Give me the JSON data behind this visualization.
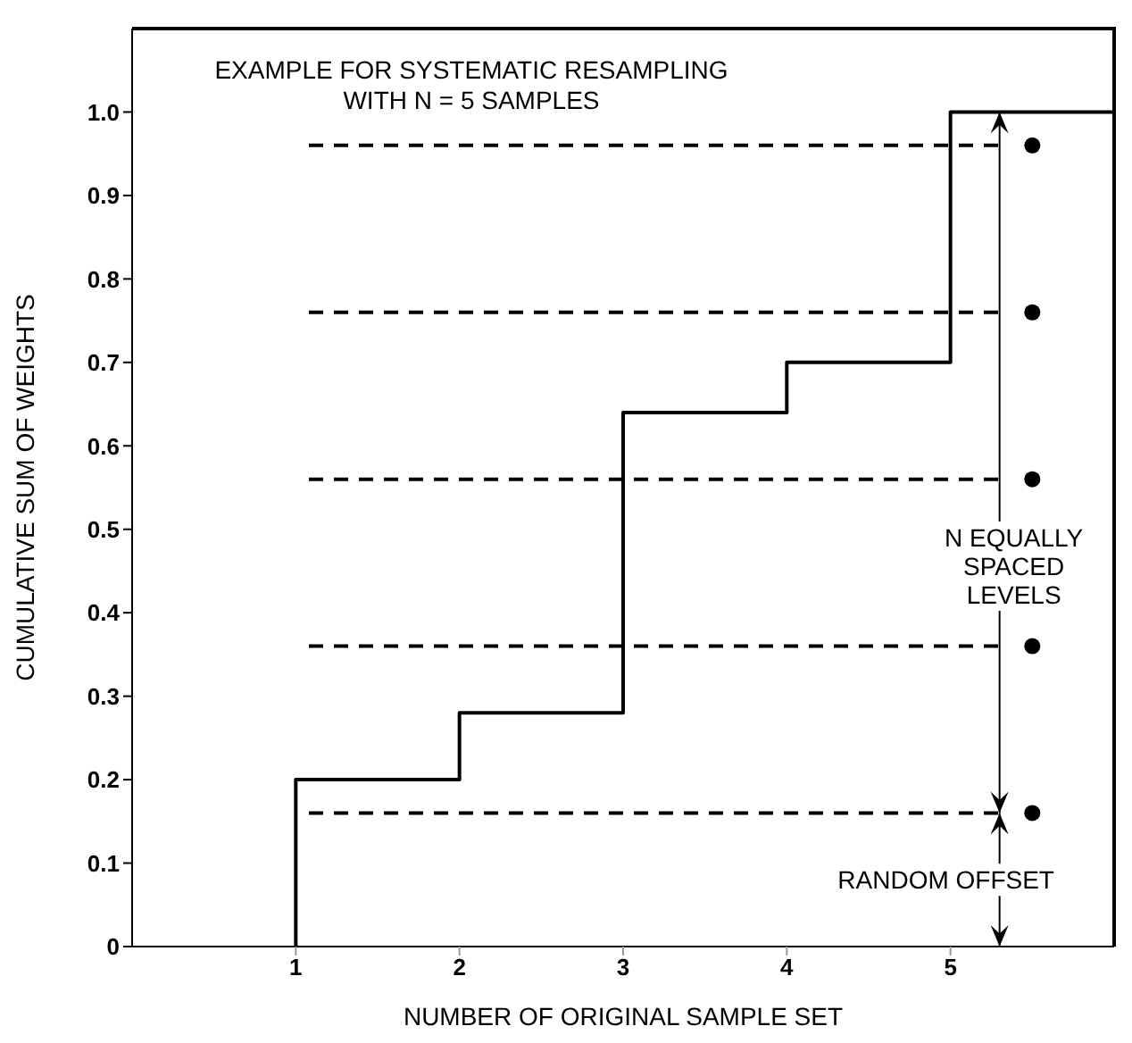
{
  "chart_data": {
    "type": "line",
    "title": "EXAMPLE FOR SYSTEMATIC RESAMPLING\nWITH N = 5 SAMPLES",
    "xlabel": "NUMBER OF ORIGINAL SAMPLE SET",
    "ylabel": "CUMULATIVE SUM OF WEIGHTS",
    "xlim": [
      0,
      6
    ],
    "xticks": [
      1,
      2,
      3,
      4,
      5
    ],
    "ylim": [
      0,
      1.1
    ],
    "yticks": [
      0,
      0.1,
      0.2,
      0.3,
      0.4,
      0.5,
      0.6,
      0.7,
      0.8,
      0.9,
      {
        "value": 1,
        "label": "1.0"
      }
    ],
    "grid": false,
    "legend": false,
    "series": [
      {
        "type": "step",
        "color": "#000000",
        "line_style": "solid",
        "marker": "none",
        "x": [
          1,
          1,
          2,
          3,
          4,
          5,
          6
        ],
        "values": [
          0,
          0.2,
          0.28,
          0.64,
          0.7,
          1.0,
          1.0
        ]
      },
      {
        "type": "line",
        "color": "#000000",
        "line_style": "dashed",
        "marker": "none",
        "x": [
          1.08,
          5.3
        ],
        "values": [
          0.16,
          0.16
        ]
      },
      {
        "type": "line",
        "color": "#000000",
        "line_style": "dashed",
        "marker": "none",
        "x": [
          1.08,
          5.3
        ],
        "values": [
          0.36,
          0.36
        ]
      },
      {
        "type": "line",
        "color": "#000000",
        "line_style": "dashed",
        "marker": "none",
        "x": [
          1.08,
          5.3
        ],
        "values": [
          0.56,
          0.56
        ]
      },
      {
        "type": "line",
        "color": "#000000",
        "line_style": "dashed",
        "marker": "none",
        "x": [
          1.08,
          5.3
        ],
        "values": [
          0.76,
          0.76
        ]
      },
      {
        "type": "line",
        "color": "#000000",
        "line_style": "dashed",
        "marker": "none",
        "x": [
          1.08,
          5.3
        ],
        "values": [
          0.96,
          0.96
        ]
      },
      {
        "type": "scatter",
        "color": "#000000",
        "marker": "circle",
        "x": [
          5.5,
          5.5,
          5.5,
          5.5,
          5.5
        ],
        "values": [
          0.16,
          0.36,
          0.56,
          0.76,
          0.96
        ]
      }
    ],
    "annotations": [
      "N EQUALLY\nSPACED\nLEVELS",
      "RANDOM OFFSET"
    ]
  }
}
